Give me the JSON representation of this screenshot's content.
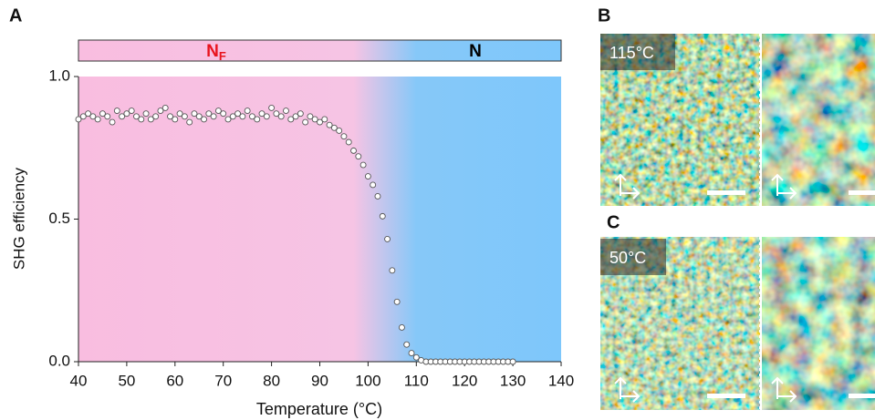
{
  "chart_data": {
    "type": "scatter",
    "panel_labels": [
      "A",
      "B",
      "C"
    ],
    "phases": [
      {
        "label": "N",
        "sub": "F",
        "color": "#e8141e"
      },
      {
        "label": "N",
        "color": "#000000"
      }
    ],
    "xlabel": "Temperature (°C)",
    "ylabel": "SHG efficiency",
    "xlim": [
      40,
      140
    ],
    "ylim": [
      0,
      1
    ],
    "xticks": [
      40,
      50,
      60,
      70,
      80,
      90,
      100,
      110,
      120,
      130,
      140
    ],
    "yticks": [
      {
        "value": 0,
        "label": "0.0"
      },
      0.5,
      {
        "value": 1,
        "label": "1.0"
      }
    ],
    "micrograph_labels": [
      "115°C",
      "50°C"
    ],
    "series": [
      {
        "color": "#ffffff",
        "x": [
          40,
          41,
          42,
          43,
          44,
          45,
          46,
          47,
          48,
          49,
          50,
          51,
          52,
          53,
          54,
          55,
          56,
          57,
          58,
          59,
          60,
          61,
          62,
          63,
          64,
          65,
          66,
          67,
          68,
          69,
          70,
          71,
          72,
          73,
          74,
          75,
          76,
          77,
          78,
          79,
          80,
          81,
          82,
          83,
          84,
          85,
          86,
          87,
          88,
          89,
          90,
          91,
          92,
          93,
          94,
          95,
          96,
          97,
          98,
          99,
          100,
          101,
          102,
          103,
          104,
          105,
          106,
          107,
          108,
          109,
          110,
          111,
          112,
          113,
          114,
          115,
          116,
          117,
          118,
          119,
          120,
          121,
          122,
          123,
          124,
          125,
          126,
          127,
          128,
          129,
          130
        ],
        "values": [
          0.85,
          0.86,
          0.87,
          0.86,
          0.85,
          0.87,
          0.86,
          0.84,
          0.88,
          0.86,
          0.87,
          0.88,
          0.86,
          0.85,
          0.87,
          0.85,
          0.86,
          0.88,
          0.89,
          0.86,
          0.85,
          0.87,
          0.86,
          0.84,
          0.87,
          0.86,
          0.85,
          0.87,
          0.86,
          0.88,
          0.87,
          0.85,
          0.86,
          0.87,
          0.86,
          0.88,
          0.86,
          0.85,
          0.87,
          0.86,
          0.89,
          0.87,
          0.86,
          0.88,
          0.85,
          0.86,
          0.87,
          0.84,
          0.86,
          0.85,
          0.84,
          0.85,
          0.83,
          0.82,
          0.81,
          0.79,
          0.77,
          0.74,
          0.72,
          0.69,
          0.65,
          0.62,
          0.58,
          0.51,
          0.43,
          0.32,
          0.21,
          0.12,
          0.06,
          0.03,
          0.015,
          0.005,
          0,
          0,
          0,
          0,
          0,
          0,
          0,
          0,
          0,
          0,
          0,
          0,
          0,
          0,
          0,
          0,
          0,
          0,
          0
        ]
      }
    ]
  }
}
